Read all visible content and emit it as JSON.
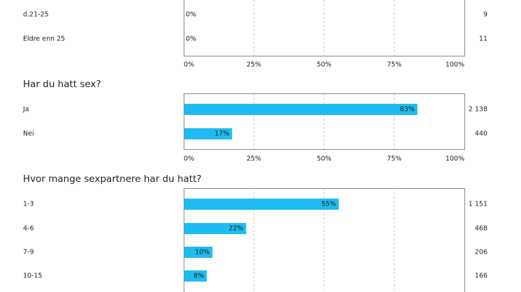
{
  "colors": {
    "bar": "#1ebcf0",
    "frame": "#888888",
    "grid": "#c8c8c8",
    "text": "#222222"
  },
  "chart_data": [
    {
      "type": "bar",
      "orientation": "horizontal",
      "title": "",
      "partial": true,
      "categories": [
        "d.21-25",
        "Eldre enn 25"
      ],
      "values": [
        0,
        0
      ],
      "value_labels": [
        "0%",
        "0%"
      ],
      "counts": [
        "9",
        "11"
      ],
      "xlim": [
        0,
        100
      ],
      "x_ticks": [
        "0%",
        "25%",
        "50%",
        "75%",
        "100%"
      ]
    },
    {
      "type": "bar",
      "orientation": "horizontal",
      "title": "Har du hatt sex?",
      "categories": [
        "Ja",
        "Nei"
      ],
      "values": [
        83,
        17
      ],
      "value_labels": [
        "83%",
        "17%"
      ],
      "counts": [
        "2 138",
        "440"
      ],
      "xlim": [
        0,
        100
      ],
      "x_ticks": [
        "0%",
        "25%",
        "50%",
        "75%",
        "100%"
      ]
    },
    {
      "type": "bar",
      "orientation": "horizontal",
      "title": "Hvor mange sexpartnere har du hatt?",
      "partial": true,
      "categories": [
        "1-3",
        "4-6",
        "7-9",
        "10-15"
      ],
      "values": [
        55,
        22,
        10,
        8
      ],
      "value_labels": [
        "55%",
        "22%",
        "10%",
        "8%"
      ],
      "counts": [
        "1 151",
        "468",
        "206",
        "166"
      ],
      "xlim": [
        0,
        100
      ],
      "x_ticks": []
    }
  ]
}
